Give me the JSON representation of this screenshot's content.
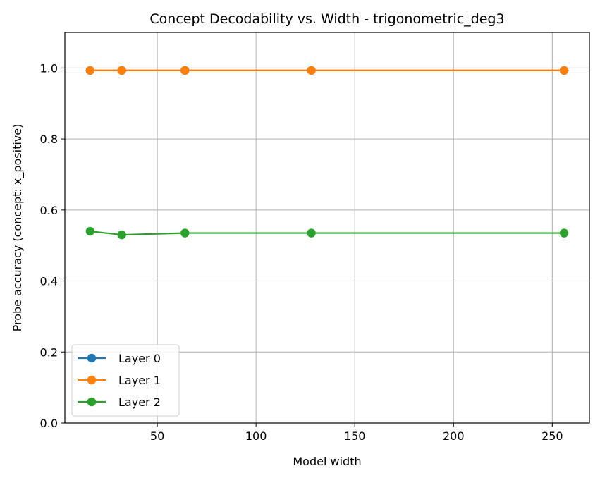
{
  "chart_data": {
    "type": "line",
    "title": "Concept Decodability vs. Width - trigonometric_deg3",
    "xlabel": "Model width",
    "ylabel": "Probe accuracy (concept: x_positive)",
    "x": [
      16,
      32,
      64,
      128,
      256
    ],
    "xlim": [
      3.2,
      268.8
    ],
    "ylim": [
      0.0,
      1.1
    ],
    "xticks": [
      50,
      100,
      150,
      200,
      250
    ],
    "yticks": [
      "0.0",
      "0.2",
      "0.4",
      "0.6",
      "0.8",
      "1.0"
    ],
    "grid": true,
    "legend_position": "lower-left",
    "series": [
      {
        "name": "Layer 0",
        "color": "#1f77b4",
        "values": [
          0.993,
          0.993,
          0.993,
          0.993,
          0.993
        ]
      },
      {
        "name": "Layer 1",
        "color": "#ff7f0e",
        "values": [
          0.993,
          0.993,
          0.993,
          0.993,
          0.993
        ]
      },
      {
        "name": "Layer 2",
        "color": "#2ca02c",
        "values": [
          0.54,
          0.53,
          0.535,
          0.535,
          0.535
        ]
      }
    ]
  }
}
